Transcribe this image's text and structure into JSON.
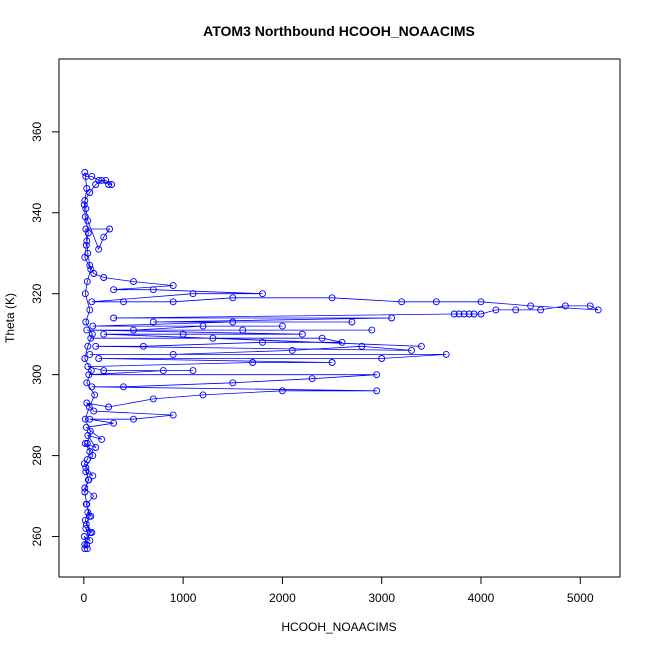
{
  "chart_data": {
    "type": "scatter",
    "title": "ATOM3 Northbound HCOOH_NOAACIMS",
    "xlabel": "HCOOH_NOAACIMS",
    "ylabel": "Theta (K)",
    "xlim": [
      -250,
      5400
    ],
    "ylim": [
      250,
      378
    ],
    "x_ticks": [
      0,
      1000,
      2000,
      3000,
      4000,
      5000
    ],
    "y_ticks": [
      260,
      280,
      300,
      320,
      340,
      360
    ],
    "series_color": "#0000ff",
    "marker": "open-circle",
    "connected": true,
    "series": [
      {
        "points": [
          [
            10,
            257
          ],
          [
            30,
            258
          ],
          [
            5,
            260
          ],
          [
            60,
            259
          ],
          [
            20,
            262
          ],
          [
            80,
            261
          ],
          [
            15,
            264
          ],
          [
            40,
            266
          ],
          [
            70,
            265
          ],
          [
            25,
            268
          ],
          [
            100,
            270
          ],
          [
            10,
            272
          ],
          [
            50,
            274
          ],
          [
            20,
            276
          ],
          [
            90,
            275
          ],
          [
            5,
            278
          ],
          [
            35,
            279
          ],
          [
            60,
            281
          ],
          [
            15,
            283
          ],
          [
            120,
            282
          ],
          [
            40,
            285
          ],
          [
            180,
            284
          ],
          [
            25,
            287
          ],
          [
            300,
            288
          ],
          [
            60,
            289
          ],
          [
            500,
            289
          ],
          [
            900,
            290
          ],
          [
            100,
            291
          ],
          [
            30,
            293
          ],
          [
            250,
            292
          ],
          [
            700,
            294
          ],
          [
            1200,
            295
          ],
          [
            2000,
            296
          ],
          [
            2950,
            296
          ],
          [
            80,
            297
          ],
          [
            400,
            297
          ],
          [
            1500,
            298
          ],
          [
            2300,
            299
          ],
          [
            2950,
            300
          ],
          [
            50,
            300
          ],
          [
            800,
            301
          ],
          [
            1100,
            301
          ],
          [
            200,
            301
          ],
          [
            40,
            302
          ],
          [
            1700,
            303
          ],
          [
            2500,
            303
          ],
          [
            150,
            304
          ],
          [
            3000,
            304
          ],
          [
            3650,
            305
          ],
          [
            60,
            305
          ],
          [
            900,
            305
          ],
          [
            2100,
            306
          ],
          [
            2800,
            307
          ],
          [
            3300,
            306
          ],
          [
            120,
            307
          ],
          [
            600,
            307
          ],
          [
            1800,
            308
          ],
          [
            2600,
            308
          ],
          [
            2400,
            309
          ],
          [
            70,
            309
          ],
          [
            1300,
            309
          ],
          [
            3400,
            307
          ],
          [
            200,
            310
          ],
          [
            1000,
            310
          ],
          [
            2200,
            310
          ],
          [
            30,
            311
          ],
          [
            1600,
            311
          ],
          [
            2900,
            311
          ],
          [
            500,
            311
          ],
          [
            1200,
            312
          ],
          [
            2000,
            312
          ],
          [
            90,
            312
          ],
          [
            1500,
            313
          ],
          [
            2700,
            313
          ],
          [
            700,
            313
          ],
          [
            3100,
            314
          ],
          [
            300,
            314
          ],
          [
            3730,
            315
          ],
          [
            3780,
            315
          ],
          [
            3830,
            315
          ],
          [
            3880,
            315
          ],
          [
            3930,
            315
          ],
          [
            4000,
            315
          ],
          [
            4150,
            316
          ],
          [
            4350,
            316
          ],
          [
            4600,
            316
          ],
          [
            4850,
            317
          ],
          [
            5100,
            317
          ],
          [
            5180,
            316
          ],
          [
            4500,
            317
          ],
          [
            4000,
            318
          ],
          [
            3550,
            318
          ],
          [
            3200,
            318
          ],
          [
            2500,
            319
          ],
          [
            1500,
            319
          ],
          [
            900,
            318
          ],
          [
            400,
            318
          ],
          [
            80,
            318
          ],
          [
            1100,
            320
          ],
          [
            1800,
            320
          ],
          [
            700,
            321
          ],
          [
            300,
            321
          ],
          [
            900,
            322
          ],
          [
            500,
            323
          ],
          [
            200,
            324
          ],
          [
            100,
            325
          ],
          [
            60,
            327
          ],
          [
            40,
            330
          ],
          [
            30,
            333
          ],
          [
            20,
            336
          ],
          [
            260,
            336
          ],
          [
            200,
            334
          ],
          [
            150,
            331
          ],
          [
            40,
            338
          ],
          [
            20,
            341
          ],
          [
            10,
            343
          ],
          [
            60,
            345
          ],
          [
            120,
            347
          ],
          [
            180,
            348
          ],
          [
            250,
            347
          ],
          [
            280,
            347
          ],
          [
            220,
            348
          ],
          [
            150,
            348
          ],
          [
            80,
            349
          ],
          [
            20,
            349
          ],
          [
            10,
            350
          ],
          [
            30,
            346
          ],
          [
            5,
            342
          ],
          [
            15,
            339
          ],
          [
            45,
            335
          ],
          [
            25,
            332
          ],
          [
            10,
            329
          ],
          [
            70,
            326
          ],
          [
            35,
            323
          ],
          [
            15,
            320
          ],
          [
            60,
            316
          ],
          [
            20,
            313
          ],
          [
            85,
            310
          ],
          [
            40,
            307
          ],
          [
            10,
            304
          ],
          [
            75,
            301
          ],
          [
            30,
            298
          ],
          [
            110,
            295
          ],
          [
            55,
            292
          ],
          [
            15,
            289
          ],
          [
            65,
            286
          ],
          [
            35,
            283
          ],
          [
            90,
            280
          ],
          [
            20,
            277
          ],
          [
            45,
            274
          ],
          [
            10,
            271
          ],
          [
            30,
            268
          ],
          [
            55,
            265
          ],
          [
            25,
            263
          ],
          [
            65,
            261
          ],
          [
            10,
            258
          ],
          [
            35,
            257
          ]
        ]
      }
    ]
  }
}
